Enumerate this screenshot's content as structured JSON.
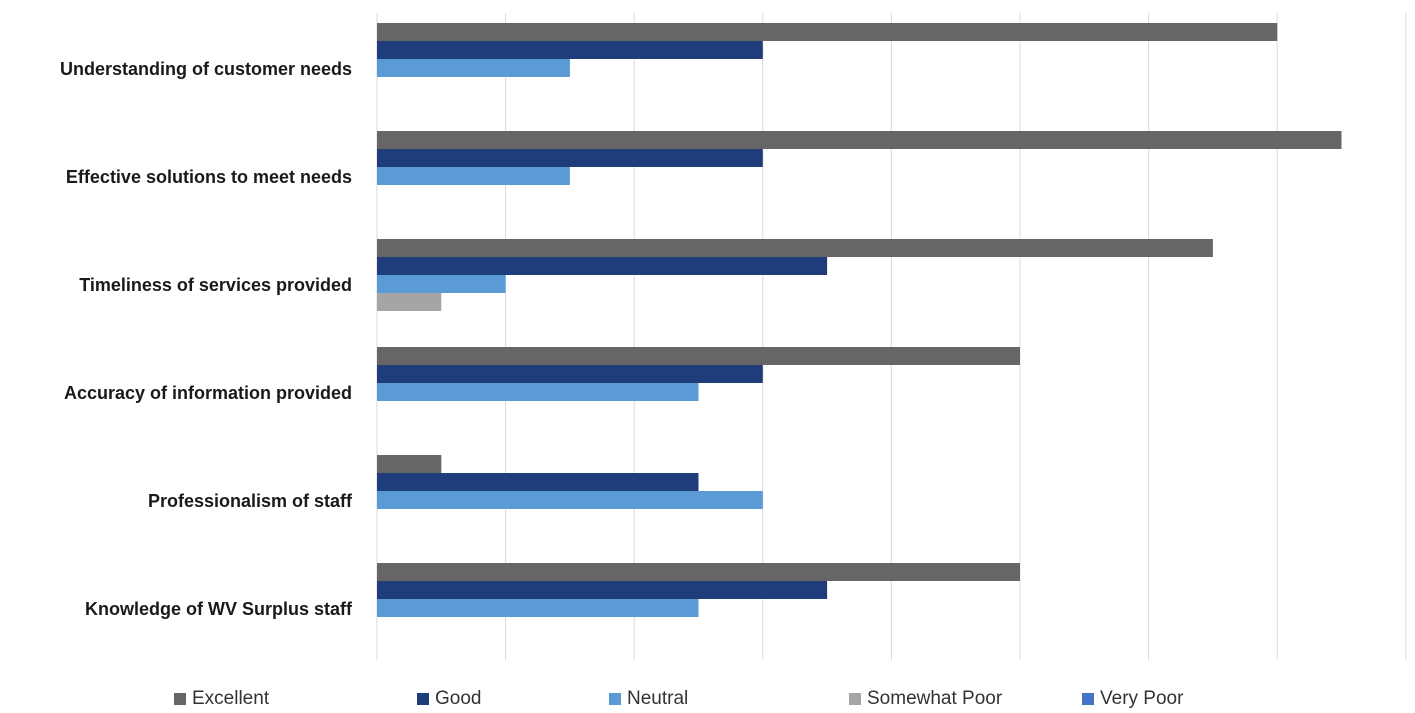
{
  "chart_data": {
    "type": "bar",
    "orientation": "horizontal",
    "categories": [
      "Understanding of customer needs",
      "Effective solutions to meet needs",
      "Timeliness of services provided",
      "Accuracy of information provided",
      "Professionalism of staff",
      "Knowledge of WV Surplus staff"
    ],
    "series": [
      {
        "name": "Excellent",
        "color": "#666666",
        "values": [
          14,
          15,
          13,
          10,
          1,
          10
        ]
      },
      {
        "name": "Good",
        "color": "#1f3d7a",
        "values": [
          6,
          6,
          7,
          6,
          5,
          7
        ]
      },
      {
        "name": "Neutral",
        "color": "#5b9bd5",
        "values": [
          3,
          3,
          2,
          5,
          6,
          5
        ]
      },
      {
        "name": "Somewhat Poor",
        "color": "#a5a5a5",
        "values": [
          0,
          0,
          1,
          0,
          0,
          0
        ]
      },
      {
        "name": "Very Poor",
        "color": "#4472c4",
        "values": [
          0,
          0,
          0,
          0,
          0,
          0
        ]
      }
    ],
    "xlim": [
      0,
      16
    ],
    "grid": true,
    "legend_position": "bottom",
    "title": "",
    "xlabel": "",
    "ylabel": ""
  }
}
